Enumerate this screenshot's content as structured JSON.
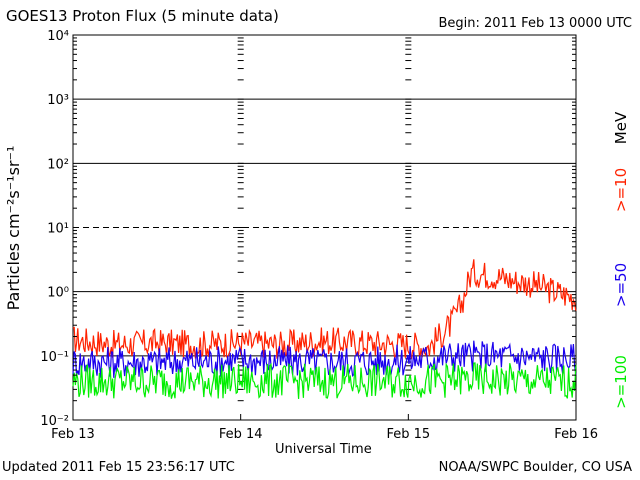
{
  "header": {
    "title": "GOES13 Proton Flux (5 minute data)",
    "begin": "Begin: 2011 Feb 13 0000 UTC"
  },
  "footer": {
    "updated": "Updated 2011 Feb 15 23:56:17 UTC",
    "credit": "NOAA/SWPC Boulder, CO USA"
  },
  "chart_data": {
    "type": "line",
    "title": "GOES13 Proton Flux (5 minute data)",
    "xlabel": "Universal Time",
    "ylabel": "Particles cm⁻²s⁻¹sr⁻¹",
    "yscale": "log",
    "ylim": [
      0.01,
      10000
    ],
    "xlim": [
      "2011-02-13 00:00",
      "2011-02-16 00:00"
    ],
    "x_ticks": [
      "Feb 13",
      "Feb 14",
      "Feb 15",
      "Feb 16"
    ],
    "y_ticks": [
      "10⁻²",
      "10⁻¹",
      "10⁰",
      "10¹",
      "10²",
      "10³",
      "10⁴"
    ],
    "threshold_line": 10,
    "units_label": "MeV",
    "series": [
      {
        "name": ">=10",
        "color": "#ff2200",
        "x": [
          "2011-02-13 00:00",
          "2011-02-13 06:00",
          "2011-02-13 12:00",
          "2011-02-13 18:00",
          "2011-02-14 00:00",
          "2011-02-14 06:00",
          "2011-02-14 12:00",
          "2011-02-14 18:00",
          "2011-02-15 00:00",
          "2011-02-15 03:00",
          "2011-02-15 06:00",
          "2011-02-15 07:30",
          "2011-02-15 09:00",
          "2011-02-15 12:00",
          "2011-02-15 15:00",
          "2011-02-15 18:00",
          "2011-02-15 21:00",
          "2011-02-16 00:00"
        ],
        "values": [
          0.18,
          0.15,
          0.16,
          0.15,
          0.16,
          0.15,
          0.17,
          0.16,
          0.15,
          0.14,
          0.3,
          0.6,
          2.0,
          1.8,
          1.5,
          1.3,
          1.0,
          0.8
        ]
      },
      {
        "name": ">=50",
        "color": "#1a00ee",
        "x": [
          "2011-02-13 00:00",
          "2011-02-13 12:00",
          "2011-02-14 00:00",
          "2011-02-14 12:00",
          "2011-02-15 00:00",
          "2011-02-15 06:00",
          "2011-02-15 12:00",
          "2011-02-15 18:00",
          "2011-02-16 00:00"
        ],
        "values": [
          0.08,
          0.08,
          0.085,
          0.08,
          0.085,
          0.1,
          0.1,
          0.095,
          0.09
        ]
      },
      {
        "name": ">=100",
        "color": "#00ee00",
        "x": [
          "2011-02-13 00:00",
          "2011-02-13 12:00",
          "2011-02-14 00:00",
          "2011-02-14 12:00",
          "2011-02-15 00:00",
          "2011-02-15 06:00",
          "2011-02-15 12:00",
          "2011-02-15 18:00",
          "2011-02-16 00:00"
        ],
        "values": [
          0.04,
          0.04,
          0.04,
          0.04,
          0.04,
          0.042,
          0.042,
          0.04,
          0.04
        ]
      }
    ]
  }
}
